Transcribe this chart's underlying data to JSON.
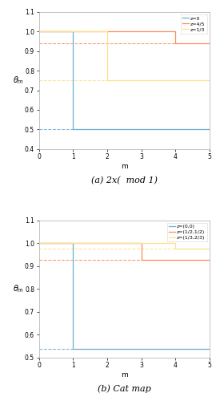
{
  "subplot_a": {
    "xlabel": "m",
    "ylabel": "θ_m",
    "caption": "(a) 2x(  mod 1)",
    "xlim": [
      0,
      5
    ],
    "ylim": [
      0.4,
      1.1
    ],
    "yticks": [
      0.4,
      0.5,
      0.6,
      0.7,
      0.8,
      0.9,
      1.0,
      1.1
    ],
    "xticks": [
      0,
      1,
      2,
      3,
      4,
      5
    ],
    "series": [
      {
        "label": "z=0",
        "color": "#6baed6",
        "dashed_value": 0.5,
        "x": [
          0,
          1,
          1,
          2,
          3,
          4,
          5
        ],
        "y": [
          1.0,
          1.0,
          0.5,
          0.5,
          0.5,
          0.5,
          0.5
        ]
      },
      {
        "label": "z=4/5",
        "color": "#fc8d59",
        "dashed_value": 0.94,
        "x": [
          0,
          1,
          2,
          3,
          4,
          4,
          5
        ],
        "y": [
          1.0,
          1.0,
          1.0,
          1.0,
          1.0,
          0.94,
          0.94
        ]
      },
      {
        "label": "z=1/3",
        "color": "#fee08b",
        "dashed_value": 0.75,
        "x": [
          0,
          1,
          2,
          2,
          3,
          4,
          5
        ],
        "y": [
          1.0,
          1.0,
          1.0,
          0.75,
          0.75,
          0.75,
          0.75
        ]
      }
    ]
  },
  "subplot_b": {
    "xlabel": "m",
    "ylabel": "θ_m",
    "caption": "(b) Cat map",
    "xlim": [
      0,
      5
    ],
    "ylim": [
      0.5,
      1.1
    ],
    "yticks": [
      0.5,
      0.6,
      0.7,
      0.8,
      0.9,
      1.0,
      1.1
    ],
    "xticks": [
      0,
      1,
      2,
      3,
      4,
      5
    ],
    "series": [
      {
        "label": "z=(0,0)",
        "color": "#6baed6",
        "dashed_value": 0.536,
        "x": [
          0,
          1,
          1,
          2,
          3,
          4,
          5
        ],
        "y": [
          1.0,
          1.0,
          0.536,
          0.536,
          0.536,
          0.536,
          0.536
        ]
      },
      {
        "label": "z=(1/2,1/2)",
        "color": "#fc8d59",
        "dashed_value": 0.928,
        "x": [
          0,
          1,
          2,
          3,
          3,
          4,
          5
        ],
        "y": [
          1.0,
          1.0,
          1.0,
          1.0,
          0.928,
          0.928,
          0.928
        ]
      },
      {
        "label": "z=(1/3,2/3)",
        "color": "#fee08b",
        "dashed_value": 0.975,
        "x": [
          0,
          1,
          2,
          3,
          4,
          4,
          5
        ],
        "y": [
          1.0,
          1.0,
          1.0,
          1.0,
          1.0,
          0.975,
          0.975
        ]
      }
    ]
  }
}
